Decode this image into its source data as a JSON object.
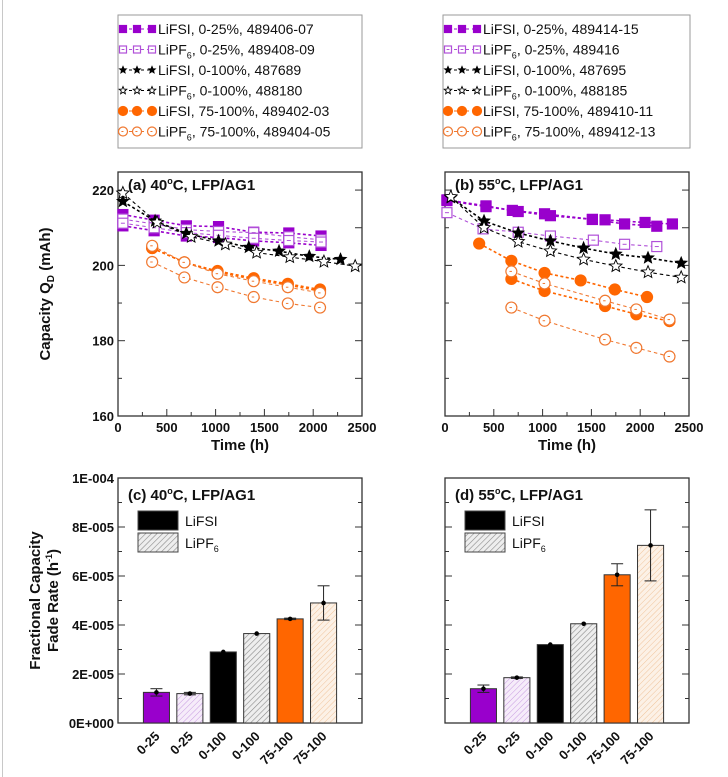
{
  "colors": {
    "purple": "#9900cc",
    "purple_open": "#b050d8",
    "black": "#000000",
    "orange": "#ff6600",
    "orange_open": "#f07830",
    "purple_hatch_bg": "#f3e6f8",
    "gray_hatch_bg": "#eeeeee",
    "orange_hatch_bg": "#fbeee2"
  },
  "chart_data": [
    {
      "id": "a",
      "type": "line",
      "title": "(a) 40°C, LFP/AG1",
      "title_parts": {
        "prefix": "(a) 40",
        "sup": "o",
        "suffix": "C, LFP/AG1"
      },
      "xlabel": "Time (h)",
      "ylabel": "Capacity Q_D (mAh)",
      "ylabel_parts": {
        "main": "Capacity Q",
        "sub": "D",
        "unit": " (mAh)"
      },
      "xlim": [
        0,
        2500
      ],
      "ylim": [
        160,
        224.8
      ],
      "xticks": [
        0,
        500,
        1000,
        1500,
        2000,
        2500
      ],
      "xtick_labels": [
        "0",
        "500",
        "1000",
        "1500",
        "2000",
        "2500"
      ],
      "yticks": [
        160,
        180,
        200,
        220
      ],
      "ytick_labels": [
        "160",
        "180",
        "200",
        "220"
      ],
      "grid": false,
      "legend_position": "above",
      "legend": [
        {
          "label": "LiFSI, 0-25%, 489406-07",
          "electrolyte": "LiFSI",
          "sub": "",
          "rest": ", 0-25%, 489406-07",
          "marker": "square",
          "filled": true,
          "color": "purple"
        },
        {
          "label": "LiPF6, 0-25%, 489408-09",
          "electrolyte": "LiPF",
          "sub": "6",
          "rest": ", 0-25%, 489408-09",
          "marker": "square",
          "filled": false,
          "color": "purple_open"
        },
        {
          "label": "LiFSI, 0-100%, 487689",
          "electrolyte": "LiFSI",
          "sub": "",
          "rest": ", 0-100%, 487689",
          "marker": "star",
          "filled": true,
          "color": "black"
        },
        {
          "label": "LiPF6, 0-100%, 488180",
          "electrolyte": "LiPF",
          "sub": "6",
          "rest": ", 0-100%, 488180",
          "marker": "star",
          "filled": false,
          "color": "black"
        },
        {
          "label": "LiFSI, 75-100%, 489402-03",
          "electrolyte": "LiFSI",
          "sub": "",
          "rest": ", 75-100%, 489402-03",
          "marker": "circle",
          "filled": true,
          "color": "orange"
        },
        {
          "label": "LiPF6, 75-100%, 489404-05",
          "electrolyte": "LiPF",
          "sub": "6",
          "rest": ", 75-100%, 489404-05",
          "marker": "circle",
          "filled": false,
          "color": "orange_open"
        }
      ],
      "series": [
        {
          "name": "LiFSI, 0-25% cell 489406",
          "marker": "square",
          "filled": true,
          "color": "purple",
          "x": [
            50,
            370,
            700,
            1030,
            1390,
            1750,
            2080
          ],
          "y": [
            213.5,
            212,
            210.5,
            210.3,
            208.8,
            208.6,
            207.8
          ]
        },
        {
          "name": "LiFSI, 0-25% cell 489407",
          "marker": "square",
          "filled": true,
          "color": "purple",
          "x": [
            50,
            370,
            700,
            1030,
            1390,
            1750,
            2080
          ],
          "y": [
            210.5,
            209.2,
            207.8,
            207.4,
            206.5,
            206.0,
            205.3
          ]
        },
        {
          "name": "LiPF6, 0-25% cell 489408",
          "marker": "square",
          "filled": false,
          "color": "purple_open",
          "x": [
            50,
            370,
            700,
            1030,
            1390,
            1750,
            2080
          ],
          "y": [
            212.3,
            211,
            209.5,
            209,
            208.7,
            207.6,
            206.8
          ]
        },
        {
          "name": "LiPF6, 0-25% cell 489409",
          "marker": "square",
          "filled": false,
          "color": "purple_open",
          "x": [
            50,
            370,
            700,
            1030,
            1390,
            1750,
            2080
          ],
          "y": [
            211.2,
            210,
            208.7,
            208,
            207.2,
            206.6,
            206.2
          ]
        },
        {
          "name": "LiFSI, 0-100%, 487689",
          "marker": "star",
          "filled": true,
          "color": "black",
          "x": [
            50,
            380,
            700,
            1030,
            1340,
            1650,
            1960,
            2280
          ],
          "y": [
            217,
            211.8,
            208.5,
            206.5,
            204.8,
            203.8,
            202.4,
            201.6
          ]
        },
        {
          "name": "LiPF6, 0-100%, 488180",
          "marker": "star",
          "filled": false,
          "color": "black",
          "x": [
            50,
            400,
            750,
            1100,
            1420,
            1760,
            2110,
            2430
          ],
          "y": [
            219.2,
            211.4,
            207.6,
            205.6,
            203.4,
            202.2,
            201.0,
            199.8
          ]
        },
        {
          "name": "LiFSI, 75-100% cell 489402",
          "marker": "circle",
          "filled": true,
          "color": "orange",
          "x": [
            350,
            680,
            1020,
            1390,
            1740,
            2070
          ],
          "y": [
            204.6,
            200.8,
            198.5,
            196.6,
            195.1,
            193.6
          ]
        },
        {
          "name": "LiFSI, 75-100% cell 489403",
          "marker": "circle",
          "filled": true,
          "color": "orange",
          "x": [
            350,
            680,
            1020,
            1390,
            1740,
            2070
          ],
          "y": [
            204.6,
            200.8,
            198.2,
            196.3,
            194.8,
            193.2
          ]
        },
        {
          "name": "LiPF6, 75-100% cell 489404",
          "marker": "circle",
          "filled": false,
          "color": "orange_open",
          "x": [
            350,
            680,
            1020,
            1390,
            1740,
            2070
          ],
          "y": [
            205.2,
            200.8,
            197.8,
            195.8,
            194.2,
            192.7
          ]
        },
        {
          "name": "LiPF6, 75-100% cell 489405",
          "marker": "circle",
          "filled": false,
          "color": "orange_open",
          "x": [
            350,
            680,
            1020,
            1390,
            1740,
            2070
          ],
          "y": [
            200.9,
            196.8,
            194.2,
            191.6,
            189.9,
            188.8
          ]
        }
      ]
    },
    {
      "id": "b",
      "type": "line",
      "title": "(b) 55°C, LFP/AG1",
      "title_parts": {
        "prefix": "(b) 55",
        "sup": "o",
        "suffix": "C, LFP/AG1"
      },
      "xlabel": "Time (h)",
      "xlim": [
        0,
        2500
      ],
      "ylim": [
        160,
        224.8
      ],
      "xticks": [
        0,
        500,
        1000,
        1500,
        2000,
        2500
      ],
      "xtick_labels": [
        "0",
        "500",
        "1000",
        "1500",
        "2000",
        "2500"
      ],
      "yticks": [
        160,
        170,
        180,
        190,
        200,
        210,
        220
      ],
      "grid": false,
      "legend_position": "above",
      "legend": [
        {
          "label": "LiFSI, 0-25%, 489414-15",
          "electrolyte": "LiFSI",
          "sub": "",
          "rest": ", 0-25%, 489414-15",
          "marker": "square",
          "filled": true,
          "color": "purple"
        },
        {
          "label": "LiPF6, 0-25%, 489416",
          "electrolyte": "LiPF",
          "sub": "6",
          "rest": ", 0-25%, 489416",
          "marker": "square",
          "filled": false,
          "color": "purple_open"
        },
        {
          "label": "LiFSI, 0-100%, 487695",
          "electrolyte": "LiFSI",
          "sub": "",
          "rest": ", 0-100%, 487695",
          "marker": "star",
          "filled": true,
          "color": "black"
        },
        {
          "label": "LiPF6, 0-100%, 488185",
          "electrolyte": "LiPF",
          "sub": "6",
          "rest": ", 0-100%, 488185",
          "marker": "star",
          "filled": false,
          "color": "black"
        },
        {
          "label": "LiFSI, 75-100%, 489410-11",
          "electrolyte": "LiFSI",
          "sub": "",
          "rest": ", 75-100%, 489410-11",
          "marker": "circle",
          "filled": true,
          "color": "orange"
        },
        {
          "label": "LiPF6, 75-100%, 489412-13",
          "electrolyte": "LiPF",
          "sub": "6",
          "rest": ", 75-100%, 489412-13",
          "marker": "circle",
          "filled": false,
          "color": "orange_open"
        }
      ],
      "series": [
        {
          "name": "LiFSI, 0-25% cell 489414",
          "marker": "square",
          "filled": true,
          "color": "purple",
          "x": [
            20,
            420,
            690,
            1020,
            1510,
            1640,
            2050,
            2330
          ],
          "y": [
            217.2,
            215.6,
            214.6,
            213.7,
            212.2,
            212.1,
            211.4,
            211.0
          ]
        },
        {
          "name": "LiFSI, 0-25% cell 489415",
          "marker": "square",
          "filled": true,
          "color": "purple",
          "x": [
            20,
            420,
            750,
            1080,
            1510,
            1840,
            2170
          ],
          "y": [
            217.4,
            215.8,
            214.3,
            213.2,
            212.2,
            211.0,
            210.4
          ]
        },
        {
          "name": "LiPF6, 0-25%, 489416",
          "marker": "square",
          "filled": false,
          "color": "purple_open",
          "x": [
            20,
            390,
            750,
            1080,
            1520,
            1840,
            2170
          ],
          "y": [
            214.0,
            209.7,
            208.8,
            207.8,
            206.7,
            205.6,
            205.0
          ]
        },
        {
          "name": "LiFSI, 0-100%, 487695",
          "marker": "star",
          "filled": true,
          "color": "black",
          "x": [
            60,
            400,
            750,
            1080,
            1420,
            1750,
            2080,
            2420
          ],
          "y": [
            218.0,
            211.8,
            208.6,
            206.5,
            204.6,
            203.0,
            202.0,
            200.6
          ]
        },
        {
          "name": "LiPF6, 0-100%, 488185",
          "marker": "star",
          "filled": false,
          "color": "black",
          "x": [
            60,
            400,
            750,
            1080,
            1420,
            1750,
            2080,
            2420
          ],
          "y": [
            218.2,
            210.0,
            206.3,
            203.8,
            201.6,
            199.8,
            198.2,
            196.8
          ]
        },
        {
          "name": "LiFSI, 75-100% cell 489410",
          "marker": "circle",
          "filled": true,
          "color": "orange",
          "x": [
            350,
            680,
            1020,
            1390,
            1740,
            2070
          ],
          "y": [
            205.8,
            201.2,
            198.0,
            196.0,
            193.6,
            191.6
          ]
        },
        {
          "name": "LiFSI, 75-100% cell 489411",
          "marker": "circle",
          "filled": true,
          "color": "orange",
          "x": [
            680,
            1020,
            1640,
            1960,
            2300
          ],
          "y": [
            196.4,
            193.2,
            189.2,
            187.0,
            185.2
          ]
        },
        {
          "name": "LiPF6, 75-100% cell 489412",
          "marker": "circle",
          "filled": false,
          "color": "orange_open",
          "x": [
            680,
            1020,
            1640,
            1960,
            2300
          ],
          "y": [
            198.4,
            195.2,
            190.6,
            188.3,
            185.6
          ]
        },
        {
          "name": "LiPF6, 75-100% cell 489413",
          "marker": "circle",
          "filled": false,
          "color": "orange_open",
          "x": [
            680,
            1020,
            1640,
            1960,
            2300
          ],
          "y": [
            188.8,
            185.3,
            180.3,
            178.1,
            175.8
          ]
        }
      ]
    },
    {
      "id": "c",
      "type": "bar",
      "title": "(c) 40°C, LFP/AG1",
      "title_parts": {
        "prefix": "(c) 40",
        "sup": "o",
        "suffix": "C, LFP/AG1"
      },
      "ylabel": "Fractional Capacity Fade Rate (h-1)",
      "ylabel_parts": {
        "line1": "Fractional Capacity",
        "line2": "Fade Rate (h",
        "sup": "-1",
        "end": ")"
      },
      "ylim": [
        0,
        0.0001
      ],
      "yticks": [
        0,
        2e-05,
        4e-05,
        6e-05,
        8e-05,
        0.0001
      ],
      "ytick_labels": [
        "0E+000",
        "2E-005",
        "4E-005",
        "6E-005",
        "8E-005",
        "1E-004"
      ],
      "categories": [
        "0-25",
        "0-25",
        "0-100",
        "0-100",
        "75-100",
        "75-100"
      ],
      "legend": [
        {
          "label": "LiFSI",
          "main": "LiFSI",
          "sub": "",
          "style": "solid-black"
        },
        {
          "label": "LiPF6",
          "main": "LiPF",
          "sub": "6",
          "style": "hatched-gray"
        }
      ],
      "bars": [
        {
          "category": "0-25",
          "electrolyte": "LiFSI",
          "value": 1.25e-05,
          "error": 1.5e-06,
          "style": "solid",
          "color": "purple"
        },
        {
          "category": "0-25",
          "electrolyte": "LiPF6",
          "value": 1.2e-05,
          "error": 5e-07,
          "style": "hatched",
          "color": "purple_hatch_bg"
        },
        {
          "category": "0-100",
          "electrolyte": "LiFSI",
          "value": 2.9e-05,
          "error": 0.0,
          "style": "solid",
          "color": "black"
        },
        {
          "category": "0-100",
          "electrolyte": "LiPF6",
          "value": 3.65e-05,
          "error": 0.0,
          "style": "hatched",
          "color": "gray_hatch_bg"
        },
        {
          "category": "75-100",
          "electrolyte": "LiFSI",
          "value": 4.25e-05,
          "error": 3e-07,
          "style": "solid",
          "color": "orange"
        },
        {
          "category": "75-100",
          "electrolyte": "LiPF6",
          "value": 4.9e-05,
          "error": 7e-06,
          "style": "hatched",
          "color": "orange_hatch_bg"
        }
      ]
    },
    {
      "id": "d",
      "type": "bar",
      "title": "(d) 55°C, LFP/AG1",
      "title_parts": {
        "prefix": "(d) 55",
        "sup": "o",
        "suffix": "C, LFP/AG1"
      },
      "ylim": [
        0,
        0.0001
      ],
      "yticks": [
        0,
        1e-05,
        2e-05,
        3e-05,
        4e-05,
        5e-05,
        6e-05,
        7e-05,
        8e-05,
        9e-05,
        0.0001
      ],
      "categories": [
        "0-25",
        "0-25",
        "0-100",
        "0-100",
        "75-100",
        "75-100"
      ],
      "legend": [
        {
          "label": "LiFSI",
          "main": "LiFSI",
          "sub": "",
          "style": "solid-black"
        },
        {
          "label": "LiPF6",
          "main": "LiPF",
          "sub": "6",
          "style": "hatched-gray"
        }
      ],
      "bars": [
        {
          "category": "0-25",
          "electrolyte": "LiFSI",
          "value": 1.4e-05,
          "error": 1.5e-06,
          "style": "solid",
          "color": "purple"
        },
        {
          "category": "0-25",
          "electrolyte": "LiPF6",
          "value": 1.85e-05,
          "error": 3e-07,
          "style": "hatched",
          "color": "purple_hatch_bg"
        },
        {
          "category": "0-100",
          "electrolyte": "LiFSI",
          "value": 3.2e-05,
          "error": 0.0,
          "style": "solid",
          "color": "black"
        },
        {
          "category": "0-100",
          "electrolyte": "LiPF6",
          "value": 4.05e-05,
          "error": 0.0,
          "style": "hatched",
          "color": "gray_hatch_bg"
        },
        {
          "category": "75-100",
          "electrolyte": "LiFSI",
          "value": 6.05e-05,
          "error": 4.5e-06,
          "style": "solid",
          "color": "orange"
        },
        {
          "category": "75-100",
          "electrolyte": "LiPF6",
          "value": 7.25e-05,
          "error": 1.45e-05,
          "style": "hatched",
          "color": "orange_hatch_bg"
        }
      ]
    }
  ]
}
